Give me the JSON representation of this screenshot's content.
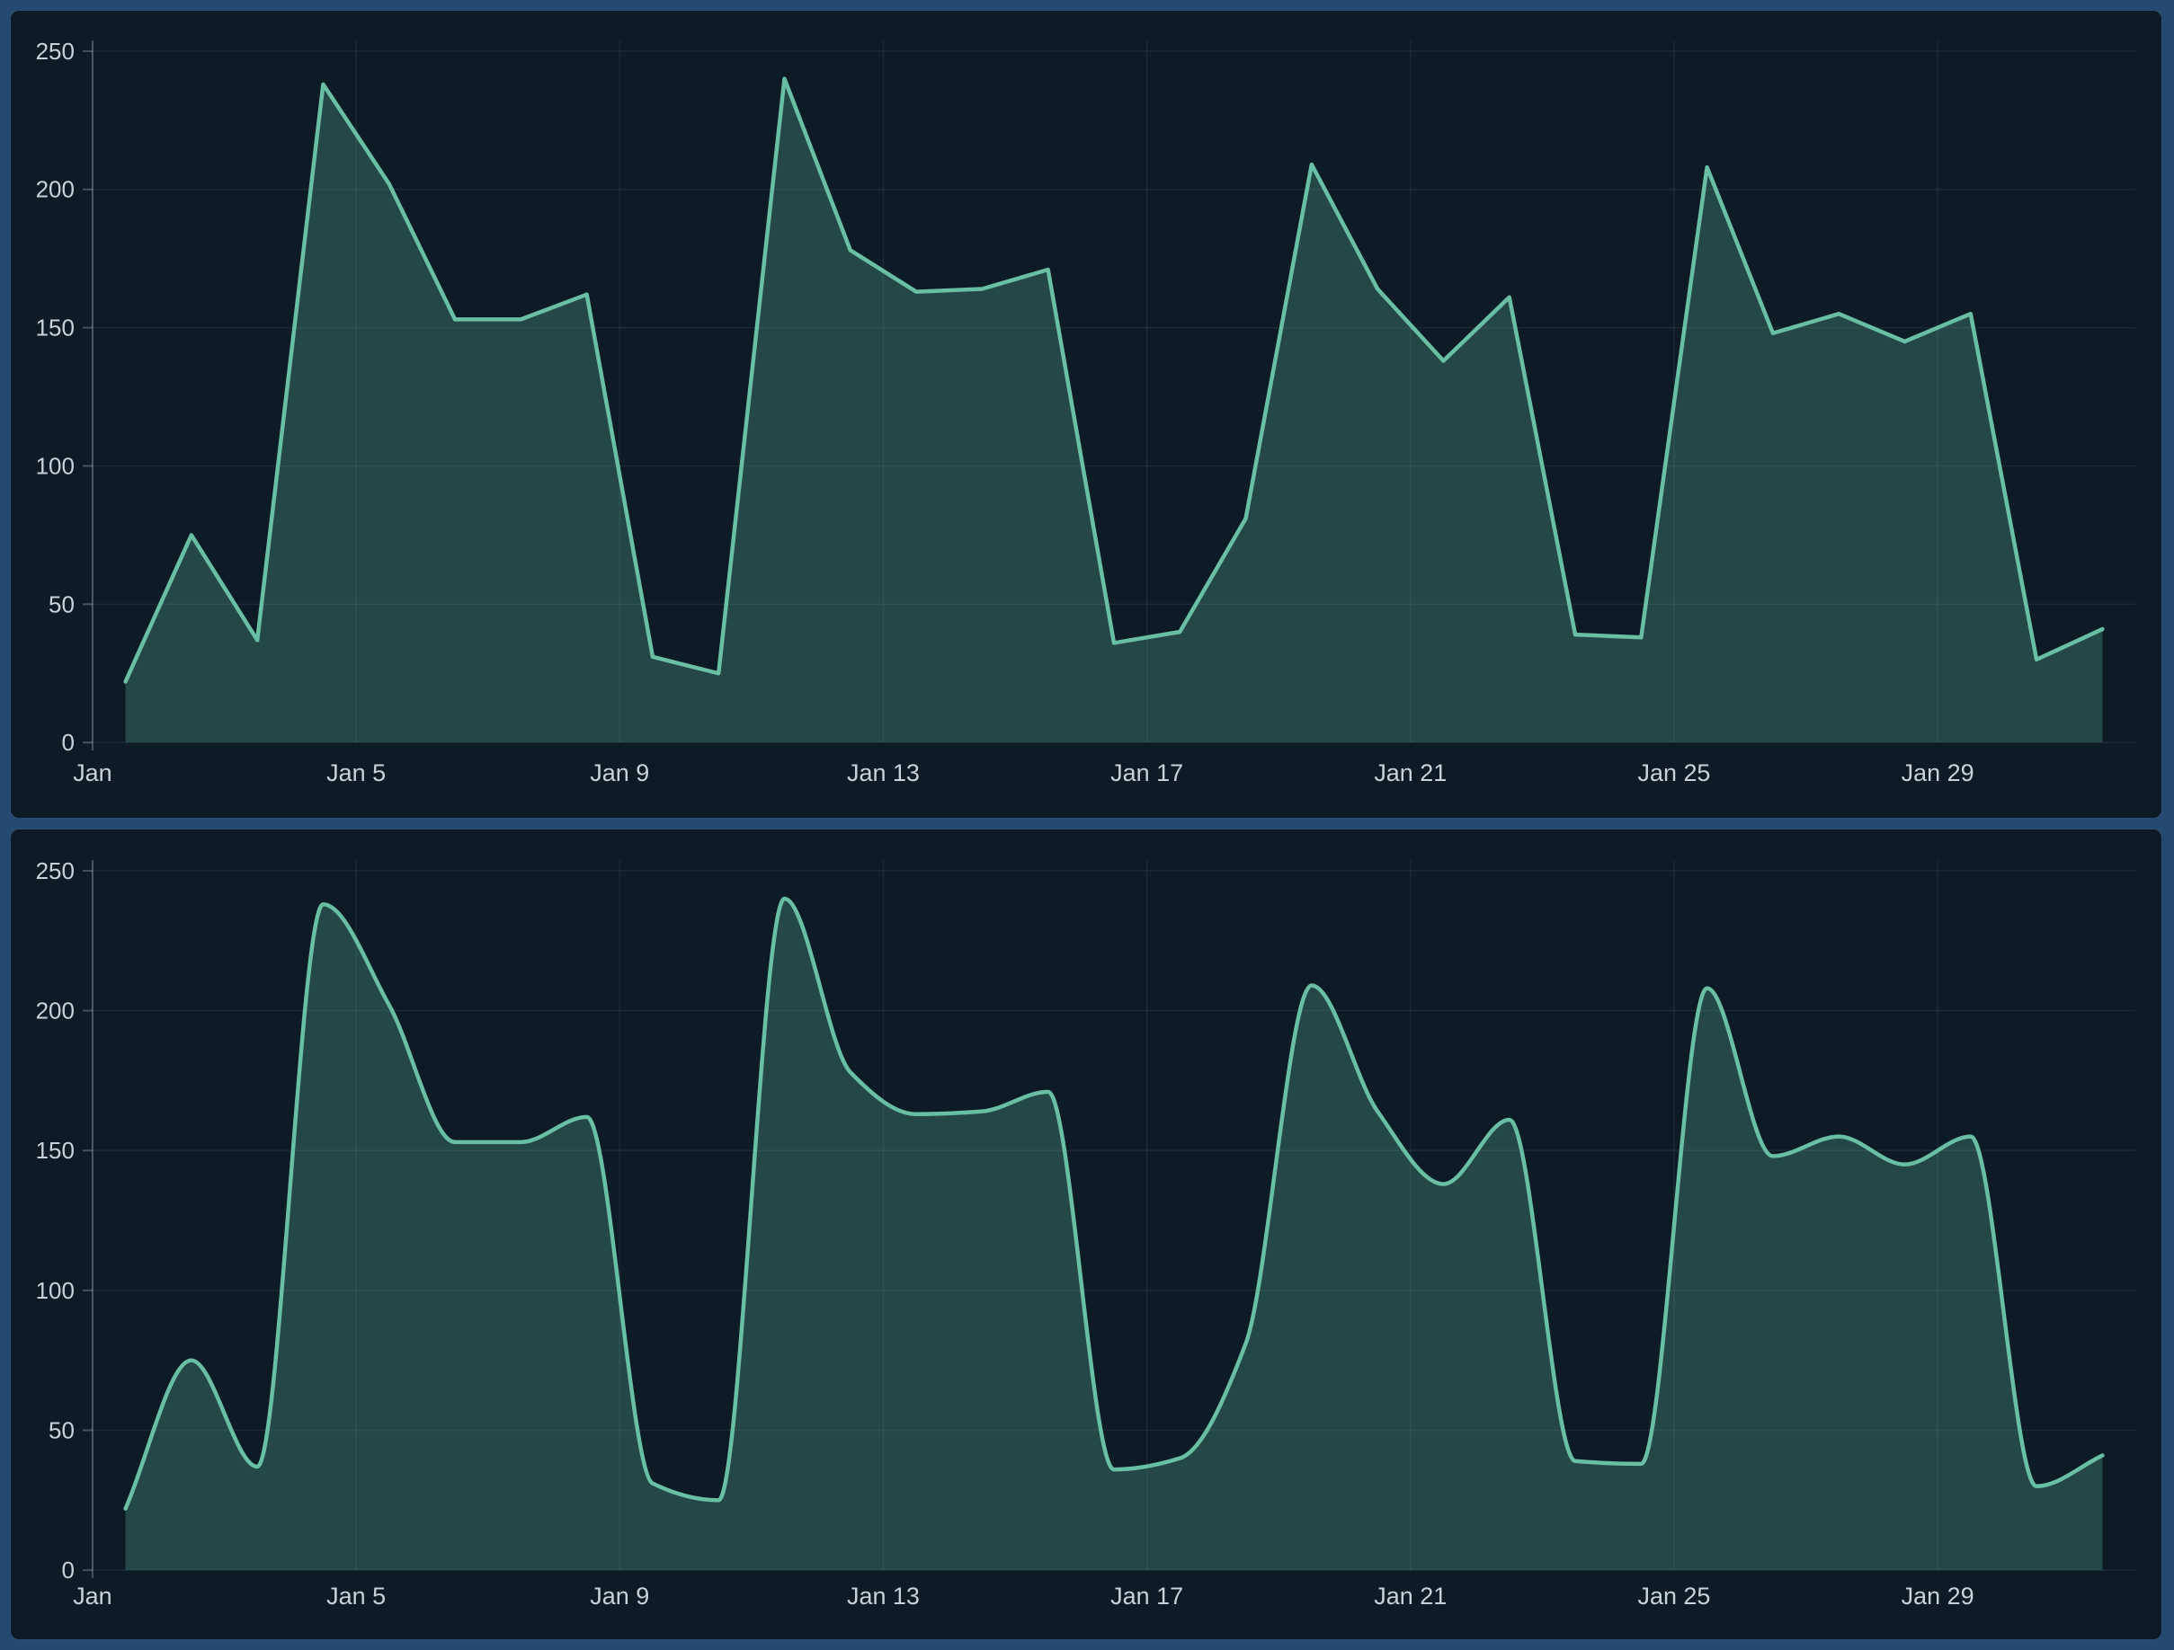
{
  "page": {
    "background_color": "#254a71",
    "panel_background_color": "#0c1b26",
    "panel_border_color": "#2b4e74",
    "text_color": "#c7d2d9",
    "gridline_color": "rgba(199,212,220,0.08)",
    "axis_color": "rgba(199,212,220,0.30)"
  },
  "chart_data": [
    {
      "type": "area",
      "title": "",
      "xlabel": "",
      "ylabel": "",
      "interpolation": "linear",
      "x_days": [
        1,
        2,
        3,
        4,
        5,
        6,
        7,
        8,
        9,
        10,
        11,
        12,
        13,
        14,
        15,
        16,
        17,
        18,
        19,
        20,
        21,
        22,
        23,
        24,
        25,
        26,
        27,
        28,
        29,
        30,
        31
      ],
      "values": [
        22,
        75,
        37,
        238,
        202,
        153,
        153,
        162,
        31,
        25,
        240,
        178,
        163,
        164,
        171,
        36,
        40,
        81,
        209,
        164,
        138,
        161,
        39,
        38,
        208,
        148,
        155,
        145,
        155,
        30,
        41
      ],
      "ylim": [
        0,
        250
      ],
      "yticks": [
        0,
        50,
        100,
        150,
        200,
        250
      ],
      "xticks": [
        {
          "day": 1,
          "label": "Jan"
        },
        {
          "day": 5,
          "label": "Jan 5"
        },
        {
          "day": 9,
          "label": "Jan 9"
        },
        {
          "day": 13,
          "label": "Jan 13"
        },
        {
          "day": 17,
          "label": "Jan 17"
        },
        {
          "day": 21,
          "label": "Jan 21"
        },
        {
          "day": 25,
          "label": "Jan 25"
        },
        {
          "day": 29,
          "label": "Jan 29"
        }
      ],
      "grid": true,
      "legend_position": "none",
      "line_color": "#69bfa4",
      "fill_color": "rgba(105,191,164,0.27)"
    },
    {
      "type": "area",
      "title": "",
      "xlabel": "",
      "ylabel": "",
      "interpolation": "smooth",
      "x_days": [
        1,
        2,
        3,
        4,
        5,
        6,
        7,
        8,
        9,
        10,
        11,
        12,
        13,
        14,
        15,
        16,
        17,
        18,
        19,
        20,
        21,
        22,
        23,
        24,
        25,
        26,
        27,
        28,
        29,
        30,
        31
      ],
      "values": [
        22,
        75,
        37,
        238,
        202,
        153,
        153,
        162,
        31,
        25,
        240,
        178,
        163,
        164,
        171,
        36,
        40,
        81,
        209,
        164,
        138,
        161,
        39,
        38,
        208,
        148,
        155,
        145,
        155,
        30,
        41
      ],
      "ylim": [
        0,
        250
      ],
      "yticks": [
        0,
        50,
        100,
        150,
        200,
        250
      ],
      "xticks": [
        {
          "day": 1,
          "label": "Jan"
        },
        {
          "day": 5,
          "label": "Jan 5"
        },
        {
          "day": 9,
          "label": "Jan 9"
        },
        {
          "day": 13,
          "label": "Jan 13"
        },
        {
          "day": 17,
          "label": "Jan 17"
        },
        {
          "day": 21,
          "label": "Jan 21"
        },
        {
          "day": 25,
          "label": "Jan 25"
        },
        {
          "day": 29,
          "label": "Jan 29"
        }
      ],
      "grid": true,
      "legend_position": "none",
      "line_color": "#69bfa4",
      "fill_color": "rgba(105,191,164,0.27)"
    }
  ]
}
